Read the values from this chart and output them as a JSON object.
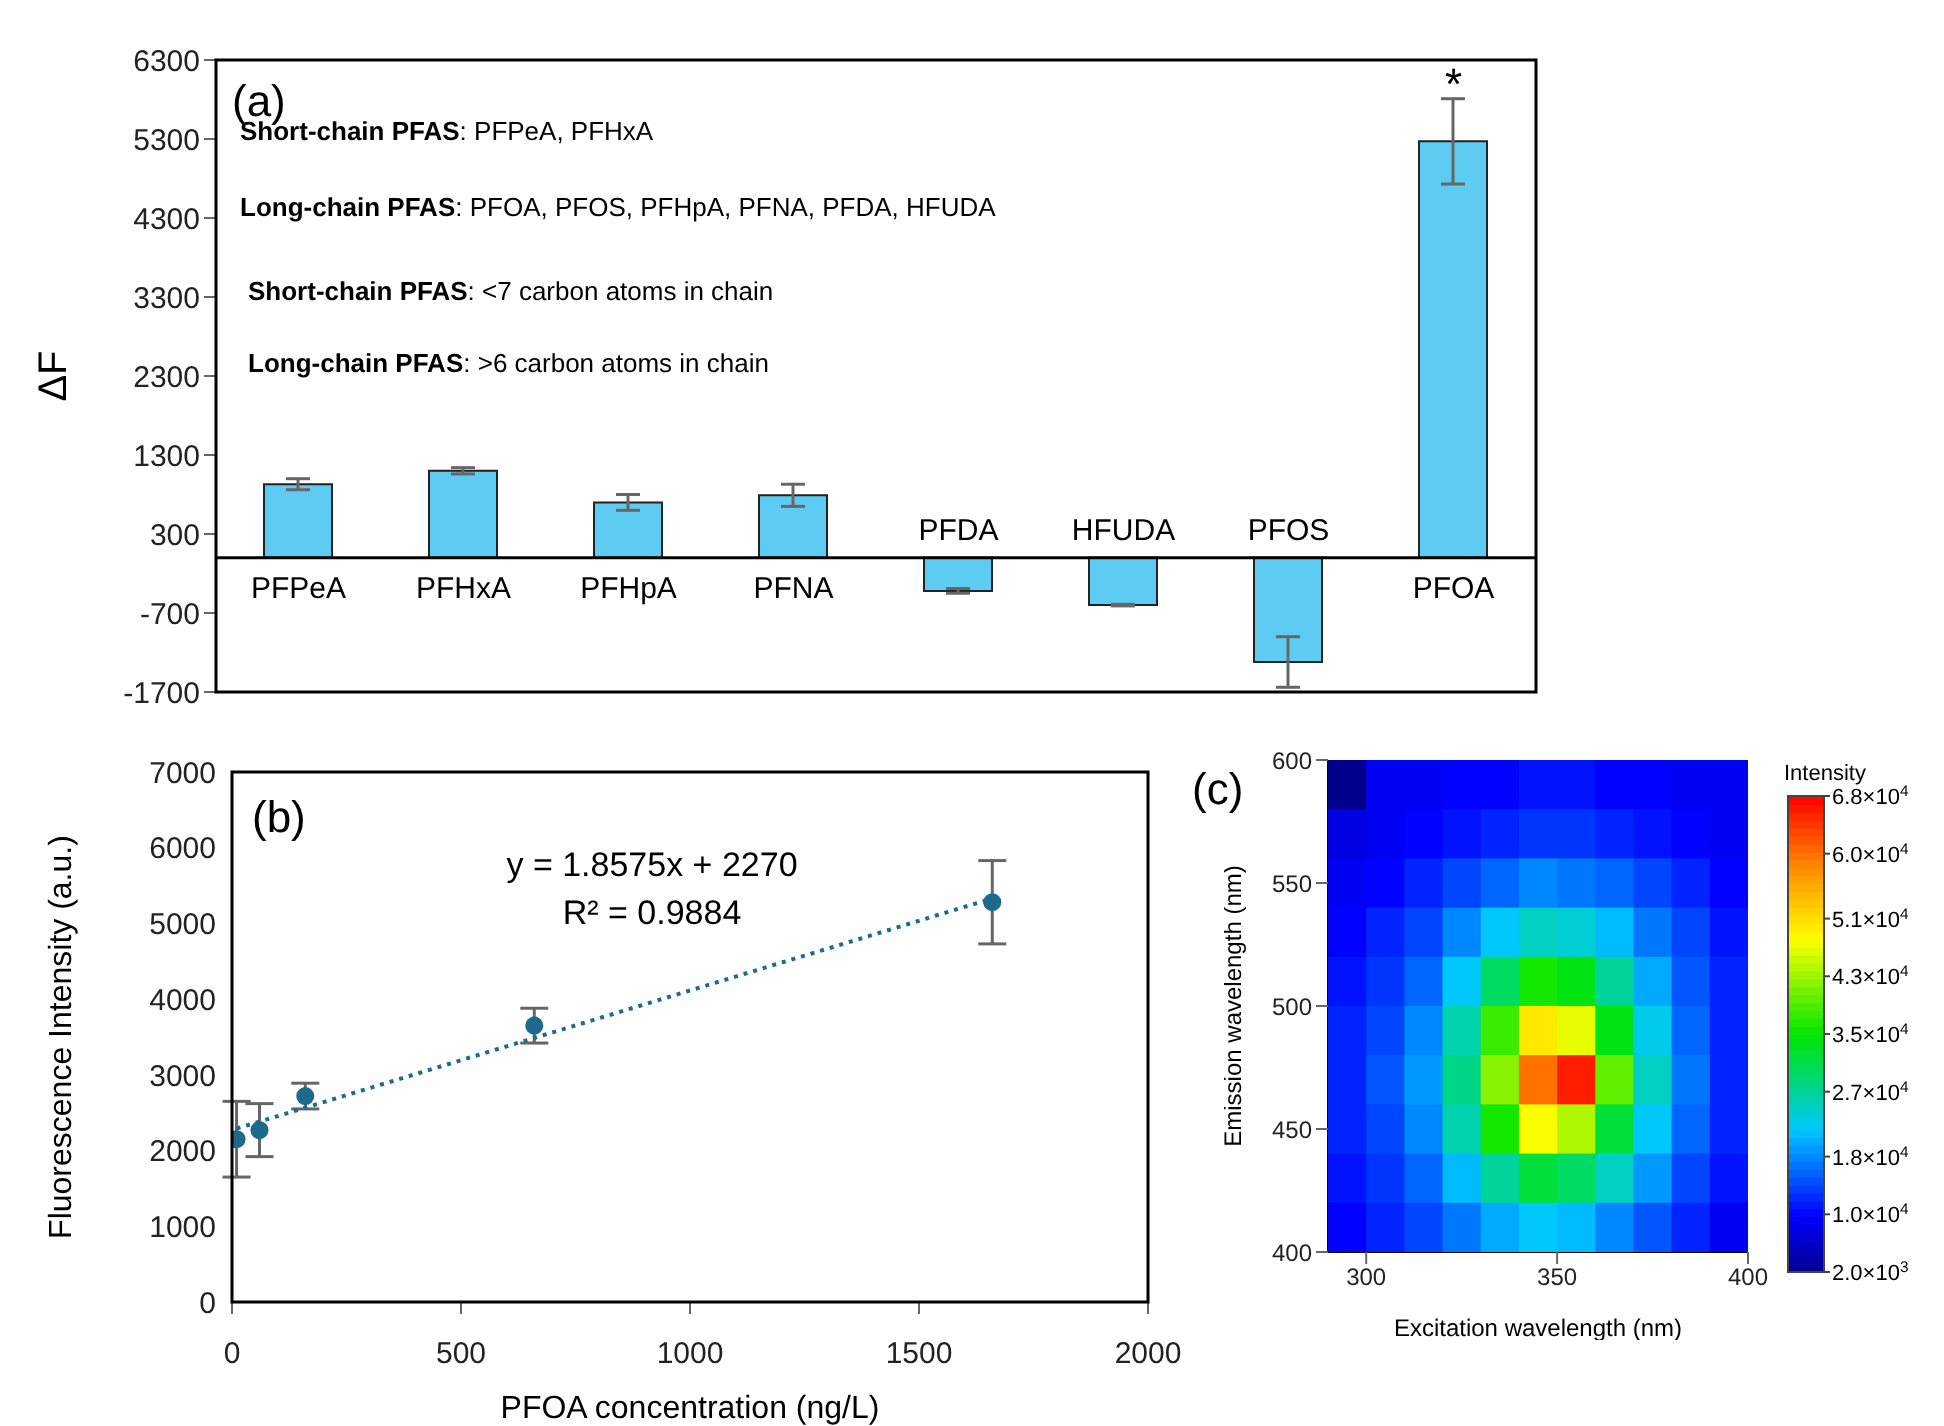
{
  "chart_data": [
    {
      "type": "bar",
      "ylabel": "ΔF",
      "categories": [
        "PFPeA",
        "PFHxA",
        "PFHpA",
        "PFNA",
        "PFDA",
        "HFUDA",
        "PFOS",
        "PFOA"
      ],
      "values": [
        930,
        1100,
        700,
        790,
        -420,
        -600,
        -1320,
        5270
      ],
      "errors": [
        70,
        40,
        100,
        140,
        30,
        10,
        320,
        540
      ],
      "color": "#5ecbf2",
      "ylim": [
        -1700,
        6300
      ],
      "yticks": [
        -1700,
        -700,
        300,
        1300,
        2300,
        3300,
        4300,
        5300,
        6300
      ],
      "annotations": [
        "(a)",
        "Short-chain PFAS: PFPeA, PFHxA",
        "Long-chain PFAS: PFOA, PFOS, PFHpA, PFNA, PFDA, HFUDA",
        "Short-chain PFAS: <7 carbon atoms in chain",
        "Long-chain PFAS: >6 carbon atoms in chain",
        {
          "text": "*",
          "x": "PFOA",
          "y": 5810
        }
      ]
    },
    {
      "type": "scatter",
      "xlabel": "PFOA concentration (ng/L)",
      "ylabel": "Fluorescence Intensity (a.u.)",
      "series": [
        {
          "type": "scatter",
          "color": "#1d6a8c",
          "x": [
            10,
            60,
            160,
            660,
            1660
          ],
          "values": [
            2150,
            2270,
            2720,
            3650,
            5280
          ],
          "errors": [
            500,
            350,
            170,
            230,
            550
          ],
          "marker": "circle"
        },
        {
          "type": "line",
          "color": "#1d6a8c",
          "x": [
            10,
            1660
          ],
          "values": [
            2290,
            5330
          ],
          "line_style": "dotted",
          "marker": "none"
        }
      ],
      "xlim": [
        0,
        2000
      ],
      "xticks": [
        0,
        500,
        1000,
        1500,
        2000
      ],
      "ylim": [
        0,
        7000
      ],
      "yticks": [
        0,
        1000,
        2000,
        3000,
        4000,
        5000,
        6000,
        7000
      ],
      "annotations": [
        "(b)",
        "y = 1.8575x + 2270",
        "R² = 0.9884"
      ]
    },
    {
      "type": "heatmap",
      "xlabel": "Excitation wavelength (nm)",
      "ylabel": "Emission wavelength (nm)",
      "clabel": "Intensity",
      "xlim": [
        290,
        400
      ],
      "xticks": [
        300,
        350,
        400
      ],
      "ylim": [
        400,
        600
      ],
      "yticks": [
        400,
        450,
        500,
        550,
        600
      ],
      "clim": [
        2000,
        68000
      ],
      "cticks": [
        {
          "value": 2000,
          "label": "2.0×10$^{3}$"
        },
        {
          "value": 10000,
          "label": "1.0×10$^{4}$"
        },
        {
          "value": 18000,
          "label": "1.8×10$^{4}$"
        },
        {
          "value": 27000,
          "label": "2.7×10$^{4}$"
        },
        {
          "value": 35000,
          "label": "3.5×10$^{4}$"
        },
        {
          "value": 43000,
          "label": "4.3×10$^{4}$"
        },
        {
          "value": 51000,
          "label": "5.1×10$^{4}$"
        },
        {
          "value": 60000,
          "label": "6.0×10$^{4}$"
        },
        {
          "value": 68000,
          "label": "6.8×10$^{4}$"
        }
      ],
      "cells": [
        [
          2000,
          9000,
          9000,
          10000,
          10000,
          11000,
          11000,
          10000,
          10000,
          9000,
          9000
        ],
        [
          8000,
          9000,
          10000,
          11000,
          12000,
          13000,
          13000,
          12000,
          11000,
          10000,
          9000
        ],
        [
          9000,
          10000,
          12000,
          14000,
          16000,
          18000,
          17000,
          16000,
          14000,
          12000,
          10000
        ],
        [
          10000,
          12000,
          14000,
          18000,
          22000,
          25000,
          24000,
          21000,
          17000,
          14000,
          11000
        ],
        [
          11000,
          13000,
          16000,
          22000,
          30000,
          36000,
          34000,
          27000,
          20000,
          15000,
          12000
        ],
        [
          12000,
          14000,
          18000,
          26000,
          38000,
          50000,
          47000,
          34000,
          23000,
          16000,
          12000
        ],
        [
          12000,
          15000,
          19000,
          28000,
          42000,
          60000,
          66000,
          40000,
          25000,
          17000,
          12000
        ],
        [
          12000,
          14000,
          18000,
          26000,
          36000,
          48000,
          44000,
          32000,
          22000,
          16000,
          12000
        ],
        [
          11000,
          13000,
          16000,
          21000,
          27000,
          32000,
          30000,
          25000,
          19000,
          14000,
          11000
        ],
        [
          10000,
          12000,
          14000,
          17000,
          20000,
          22000,
          21000,
          18000,
          15000,
          12000,
          9000
        ]
      ],
      "annotations": [
        "(c)"
      ]
    }
  ]
}
